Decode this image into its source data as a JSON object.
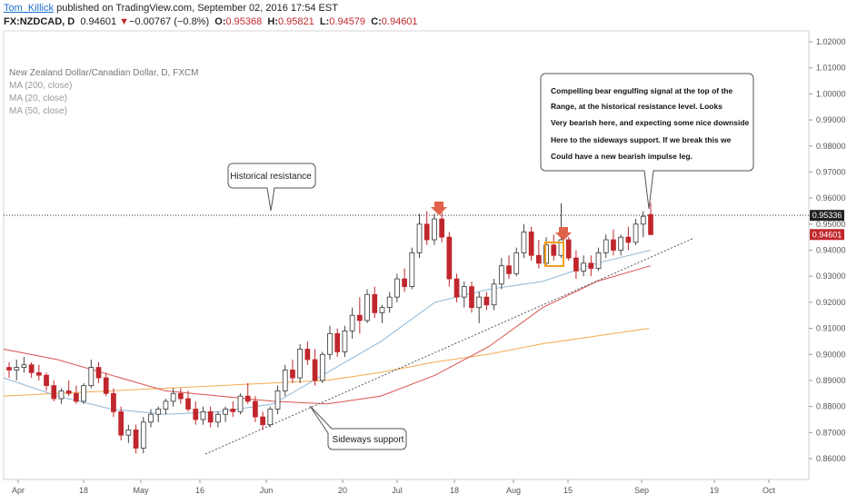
{
  "header": {
    "author": "Tom_Killick",
    "published_text": "published on TradingView.com, September 02, 2016 17:54 EST",
    "symbol": "FX:NZDCAD, D",
    "last": "0.94601",
    "change_arrow": "▼",
    "change": "−0.00767 (−0.8%)",
    "o_label": "O:",
    "o_value": "0.95368",
    "h_label": "H:",
    "h_value": "0.95821",
    "l_label": "L:",
    "l_value": "0.94579",
    "c_label": "C:",
    "c_value": "0.94601"
  },
  "legend": {
    "title": "New Zealand Dollar/Canadian Dollar, D, FXCM",
    "ma200": "MA (200, close)",
    "ma20": "MA (20, close)",
    "ma50": "MA (50, close)"
  },
  "annotations": {
    "resistance_label": "Historical resistance",
    "support_label": "Sideways support",
    "signal_lines": [
      "Compelling bear engulfing signal at the top of the",
      "Range, at the historical resistance level. Looks",
      "Very bearish here, and expecting some nice downside",
      "Here to the sideways support. If we break this we",
      "Could have a new bearish impulse leg."
    ]
  },
  "price_tags": {
    "resistance": "0.95336",
    "last": "0.94601"
  },
  "colors": {
    "up": "#ffffff",
    "down": "#c0272d",
    "wick": "#444444",
    "ma200": "#f4a94d",
    "ma20": "#8fb8d8",
    "ma50": "#d9534f",
    "arrow": "#e0624a",
    "highlight": "#f0a020"
  },
  "chart_data": {
    "type": "candlestick",
    "title": "New Zealand Dollar/Canadian Dollar, D, FXCM",
    "x_ticks": [
      "Apr",
      "18",
      "May",
      "16",
      "Jun",
      "20",
      "Jul",
      "18",
      "Aug",
      "15",
      "Sep",
      "19",
      "Oct"
    ],
    "y_ticks": [
      "1.02000",
      "1.01000",
      "1.00000",
      "0.99000",
      "0.98000",
      "0.97000",
      "0.96000",
      "0.95000",
      "0.94000",
      "0.93000",
      "0.92000",
      "0.91000",
      "0.90000",
      "0.89000",
      "0.88000",
      "0.87000",
      "0.86000"
    ],
    "ylim": [
      0.852,
      1.024
    ],
    "resistance_level": 0.95336,
    "last_price": 0.94601,
    "series": [
      {
        "name": "MA (200, close)",
        "values": [
          0.884,
          0.885,
          0.886,
          0.887,
          0.888,
          0.889,
          0.89,
          0.893,
          0.897,
          0.9,
          0.904,
          0.907,
          0.91
        ]
      },
      {
        "name": "MA (20, close)",
        "values": [
          0.891,
          0.884,
          0.879,
          0.877,
          0.878,
          0.881,
          0.893,
          0.905,
          0.92,
          0.925,
          0.928,
          0.935,
          0.94
        ]
      },
      {
        "name": "MA (50, close)",
        "values": [
          0.902,
          0.898,
          0.892,
          0.886,
          0.884,
          0.882,
          0.881,
          0.884,
          0.892,
          0.903,
          0.918,
          0.928,
          0.934
        ]
      }
    ],
    "candles": [
      [
        0.895,
        0.897,
        0.891,
        0.894
      ],
      [
        0.894,
        0.898,
        0.89,
        0.895
      ],
      [
        0.895,
        0.899,
        0.893,
        0.896
      ],
      [
        0.896,
        0.897,
        0.891,
        0.893
      ],
      [
        0.893,
        0.896,
        0.89,
        0.892
      ],
      [
        0.892,
        0.893,
        0.886,
        0.888
      ],
      [
        0.888,
        0.89,
        0.882,
        0.883
      ],
      [
        0.883,
        0.887,
        0.881,
        0.886
      ],
      [
        0.886,
        0.89,
        0.884,
        0.885
      ],
      [
        0.885,
        0.888,
        0.881,
        0.882
      ],
      [
        0.882,
        0.889,
        0.881,
        0.888
      ],
      [
        0.888,
        0.898,
        0.887,
        0.895
      ],
      [
        0.895,
        0.897,
        0.889,
        0.891
      ],
      [
        0.891,
        0.893,
        0.884,
        0.885
      ],
      [
        0.885,
        0.887,
        0.876,
        0.878
      ],
      [
        0.878,
        0.88,
        0.867,
        0.869
      ],
      [
        0.869,
        0.873,
        0.866,
        0.871
      ],
      [
        0.871,
        0.873,
        0.862,
        0.864
      ],
      [
        0.864,
        0.876,
        0.862,
        0.874
      ],
      [
        0.874,
        0.879,
        0.872,
        0.877
      ],
      [
        0.877,
        0.88,
        0.874,
        0.879
      ],
      [
        0.879,
        0.883,
        0.877,
        0.882
      ],
      [
        0.882,
        0.887,
        0.88,
        0.885
      ],
      [
        0.885,
        0.887,
        0.881,
        0.883
      ],
      [
        0.883,
        0.886,
        0.878,
        0.879
      ],
      [
        0.879,
        0.882,
        0.873,
        0.875
      ],
      [
        0.875,
        0.88,
        0.873,
        0.878
      ],
      [
        0.878,
        0.88,
        0.872,
        0.874
      ],
      [
        0.874,
        0.878,
        0.872,
        0.877
      ],
      [
        0.877,
        0.88,
        0.874,
        0.879
      ],
      [
        0.879,
        0.882,
        0.876,
        0.878
      ],
      [
        0.878,
        0.885,
        0.877,
        0.884
      ],
      [
        0.884,
        0.889,
        0.881,
        0.882
      ],
      [
        0.882,
        0.884,
        0.874,
        0.876
      ],
      [
        0.876,
        0.878,
        0.871,
        0.873
      ],
      [
        0.873,
        0.88,
        0.872,
        0.879
      ],
      [
        0.879,
        0.888,
        0.877,
        0.886
      ],
      [
        0.886,
        0.896,
        0.884,
        0.894
      ],
      [
        0.894,
        0.898,
        0.889,
        0.891
      ],
      [
        0.891,
        0.904,
        0.889,
        0.902
      ],
      [
        0.902,
        0.905,
        0.896,
        0.898
      ],
      [
        0.898,
        0.902,
        0.888,
        0.89
      ],
      [
        0.89,
        0.901,
        0.889,
        0.9
      ],
      [
        0.9,
        0.911,
        0.898,
        0.908
      ],
      [
        0.908,
        0.91,
        0.899,
        0.901
      ],
      [
        0.901,
        0.911,
        0.899,
        0.909
      ],
      [
        0.909,
        0.918,
        0.906,
        0.915
      ],
      [
        0.915,
        0.922,
        0.908,
        0.913
      ],
      [
        0.913,
        0.925,
        0.912,
        0.923
      ],
      [
        0.923,
        0.926,
        0.914,
        0.916
      ],
      [
        0.916,
        0.919,
        0.912,
        0.918
      ],
      [
        0.918,
        0.924,
        0.916,
        0.922
      ],
      [
        0.922,
        0.931,
        0.92,
        0.929
      ],
      [
        0.929,
        0.933,
        0.924,
        0.926
      ],
      [
        0.926,
        0.941,
        0.925,
        0.939
      ],
      [
        0.939,
        0.954,
        0.937,
        0.95
      ],
      [
        0.95,
        0.955,
        0.942,
        0.944
      ],
      [
        0.944,
        0.954,
        0.942,
        0.952
      ],
      [
        0.952,
        0.955,
        0.943,
        0.945
      ],
      [
        0.945,
        0.947,
        0.926,
        0.929
      ],
      [
        0.929,
        0.931,
        0.92,
        0.922
      ],
      [
        0.922,
        0.928,
        0.918,
        0.926
      ],
      [
        0.926,
        0.928,
        0.916,
        0.918
      ],
      [
        0.918,
        0.924,
        0.912,
        0.922
      ],
      [
        0.922,
        0.924,
        0.917,
        0.919
      ],
      [
        0.919,
        0.929,
        0.917,
        0.927
      ],
      [
        0.927,
        0.937,
        0.925,
        0.934
      ],
      [
        0.934,
        0.938,
        0.929,
        0.931
      ],
      [
        0.931,
        0.941,
        0.93,
        0.939
      ],
      [
        0.939,
        0.95,
        0.937,
        0.947
      ],
      [
        0.947,
        0.949,
        0.936,
        0.938
      ],
      [
        0.938,
        0.944,
        0.933,
        0.935
      ],
      [
        0.935,
        0.945,
        0.934,
        0.942
      ],
      [
        0.942,
        0.946,
        0.936,
        0.938
      ],
      [
        0.938,
        0.958,
        0.937,
        0.944
      ],
      [
        0.944,
        0.945,
        0.936,
        0.937
      ],
      [
        0.937,
        0.94,
        0.929,
        0.932
      ],
      [
        0.932,
        0.938,
        0.93,
        0.935
      ],
      [
        0.935,
        0.938,
        0.93,
        0.933
      ],
      [
        0.933,
        0.941,
        0.932,
        0.939
      ],
      [
        0.939,
        0.946,
        0.937,
        0.944
      ],
      [
        0.944,
        0.948,
        0.938,
        0.94
      ],
      [
        0.94,
        0.946,
        0.938,
        0.945
      ],
      [
        0.945,
        0.949,
        0.94,
        0.943
      ],
      [
        0.943,
        0.952,
        0.942,
        0.95
      ],
      [
        0.95,
        0.955,
        0.945,
        0.953
      ],
      [
        0.9537,
        0.9582,
        0.9458,
        0.946
      ]
    ]
  }
}
